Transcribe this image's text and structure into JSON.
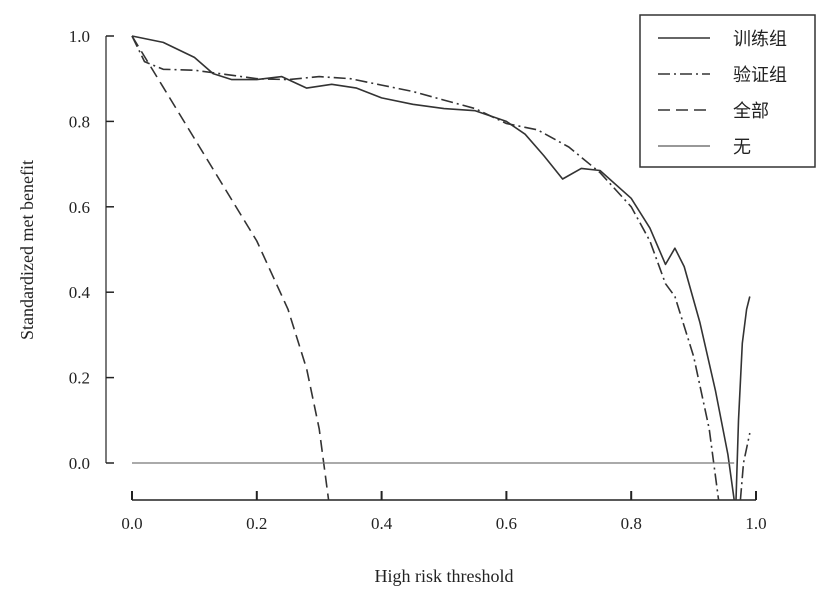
{
  "chart_data": {
    "type": "line",
    "title": "",
    "xlabel": "High risk threshold",
    "ylabel": "Standardized met benefit",
    "xlim": [
      0,
      1.0
    ],
    "ylim": [
      -0.087,
      1.0
    ],
    "xticks": [
      "0.0",
      "0.2",
      "0.4",
      "0.6",
      "0.8",
      "1.0"
    ],
    "yticks": [
      "0.0",
      "0.2",
      "0.4",
      "0.6",
      "0.8",
      "1.0"
    ],
    "legend_position": "top-right",
    "grid": false,
    "series": [
      {
        "name": "训练组",
        "style": "solid",
        "segments": [
          [
            [
              0,
              1.0
            ],
            [
              0.05,
              0.985
            ],
            [
              0.1,
              0.95
            ],
            [
              0.13,
              0.912
            ],
            [
              0.16,
              0.898
            ],
            [
              0.2,
              0.898
            ],
            [
              0.24,
              0.905
            ],
            [
              0.28,
              0.878
            ],
            [
              0.32,
              0.887
            ],
            [
              0.36,
              0.878
            ],
            [
              0.4,
              0.855
            ],
            [
              0.45,
              0.84
            ],
            [
              0.5,
              0.83
            ],
            [
              0.55,
              0.825
            ],
            [
              0.6,
              0.8
            ],
            [
              0.63,
              0.77
            ],
            [
              0.66,
              0.72
            ],
            [
              0.69,
              0.665
            ],
            [
              0.72,
              0.69
            ],
            [
              0.75,
              0.685
            ],
            [
              0.8,
              0.62
            ],
            [
              0.83,
              0.55
            ],
            [
              0.855,
              0.465
            ],
            [
              0.87,
              0.503
            ],
            [
              0.885,
              0.46
            ],
            [
              0.91,
              0.33
            ],
            [
              0.935,
              0.17
            ],
            [
              0.955,
              0.02
            ],
            [
              0.965,
              -0.087
            ]
          ],
          [
            [
              0.968,
              -0.087
            ],
            [
              0.972,
              0.1
            ],
            [
              0.978,
              0.28
            ],
            [
              0.985,
              0.36
            ],
            [
              0.99,
              0.39
            ]
          ]
        ]
      },
      {
        "name": "验证组",
        "style": "dashdot",
        "segments": [
          [
            [
              0,
              1.0
            ],
            [
              0.02,
              0.94
            ],
            [
              0.05,
              0.922
            ],
            [
              0.1,
              0.92
            ],
            [
              0.15,
              0.91
            ],
            [
              0.2,
              0.9
            ],
            [
              0.25,
              0.898
            ],
            [
              0.3,
              0.905
            ],
            [
              0.35,
              0.9
            ],
            [
              0.4,
              0.885
            ],
            [
              0.45,
              0.87
            ],
            [
              0.5,
              0.85
            ],
            [
              0.55,
              0.83
            ],
            [
              0.6,
              0.795
            ],
            [
              0.65,
              0.78
            ],
            [
              0.7,
              0.74
            ],
            [
              0.75,
              0.68
            ],
            [
              0.8,
              0.6
            ],
            [
              0.83,
              0.52
            ],
            [
              0.855,
              0.42
            ],
            [
              0.87,
              0.39
            ],
            [
              0.9,
              0.25
            ],
            [
              0.925,
              0.08
            ],
            [
              0.94,
              -0.087
            ]
          ],
          [
            [
              0.975,
              -0.087
            ],
            [
              0.98,
              0.0
            ],
            [
              0.99,
              0.07
            ]
          ]
        ]
      },
      {
        "name": "全部",
        "style": "dashed",
        "segments": [
          [
            [
              0,
              1.0
            ],
            [
              0.05,
              0.88
            ],
            [
              0.1,
              0.76
            ],
            [
              0.15,
              0.64
            ],
            [
              0.2,
              0.52
            ],
            [
              0.25,
              0.36
            ],
            [
              0.28,
              0.22
            ],
            [
              0.3,
              0.08
            ],
            [
              0.315,
              -0.087
            ]
          ]
        ]
      },
      {
        "name": "无",
        "style": "solid-thin",
        "segments": [
          [
            [
              0,
              0
            ],
            [
              0.965,
              0
            ]
          ]
        ]
      }
    ]
  },
  "colors": {
    "line": "#333333",
    "none_line": "#777777",
    "axis": "#222222"
  }
}
